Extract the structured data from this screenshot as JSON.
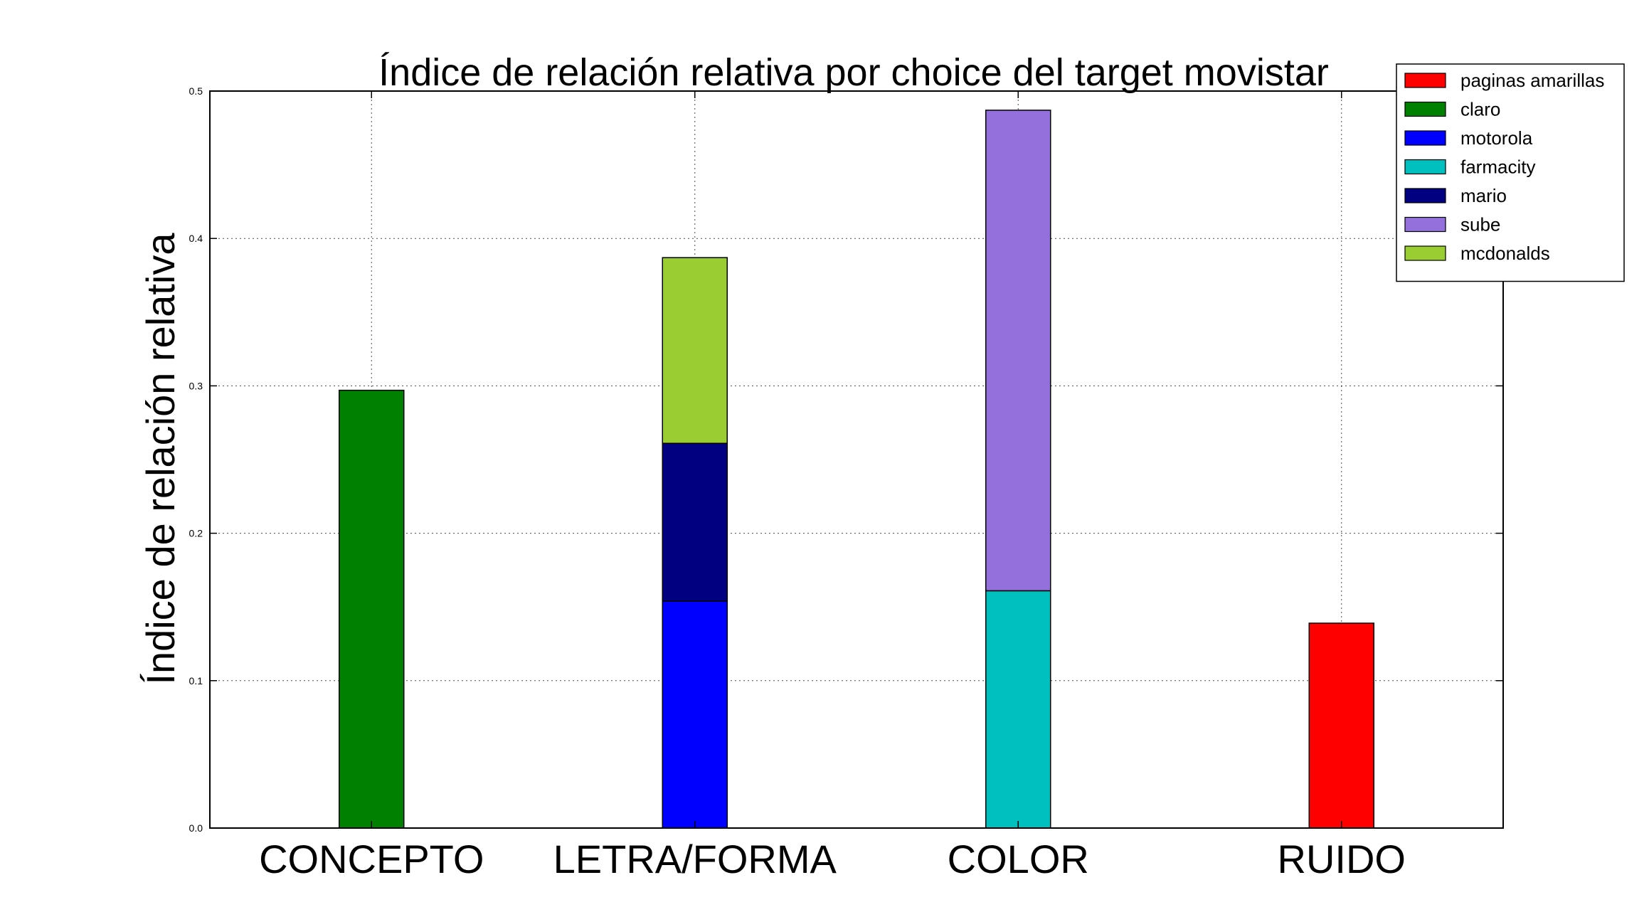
{
  "chart_data": {
    "type": "bar",
    "stacked": true,
    "title": "Índice de relación relativa por choice del target movistar",
    "xlabel": "",
    "ylabel": "Índice de relación relativa",
    "categories": [
      "CONCEPTO",
      "LETRA/FORMA",
      "COLOR",
      "RUIDO"
    ],
    "ylim": [
      0,
      0.5
    ],
    "yticks": [
      "0.0",
      "0.1",
      "0.2",
      "0.3",
      "0.4",
      "0.5"
    ],
    "grid": true,
    "legend_position": "top-right",
    "series": [
      {
        "name": "paginas amarillas",
        "color": "#ff0000",
        "values": [
          0,
          0,
          0,
          0.139
        ]
      },
      {
        "name": "claro",
        "color": "#008000",
        "values": [
          0.297,
          0,
          0,
          0
        ]
      },
      {
        "name": "motorola",
        "color": "#0000ff",
        "values": [
          0,
          0.154,
          0,
          0
        ]
      },
      {
        "name": "farmacity",
        "color": "#00bfbf",
        "values": [
          0,
          0,
          0.161,
          0
        ]
      },
      {
        "name": "mario",
        "color": "#000080",
        "values": [
          0,
          0.107,
          0,
          0
        ]
      },
      {
        "name": "sube",
        "color": "#9370db",
        "values": [
          0,
          0,
          0.326,
          0
        ]
      },
      {
        "name": "mcdonalds",
        "color": "#9acd32",
        "values": [
          0,
          0.126,
          0,
          0
        ]
      }
    ],
    "stack_order": [
      [
        "claro"
      ],
      [
        "motorola",
        "mario",
        "mcdonalds"
      ],
      [
        "farmacity",
        "sube"
      ],
      [
        "paginas amarillas"
      ]
    ]
  }
}
